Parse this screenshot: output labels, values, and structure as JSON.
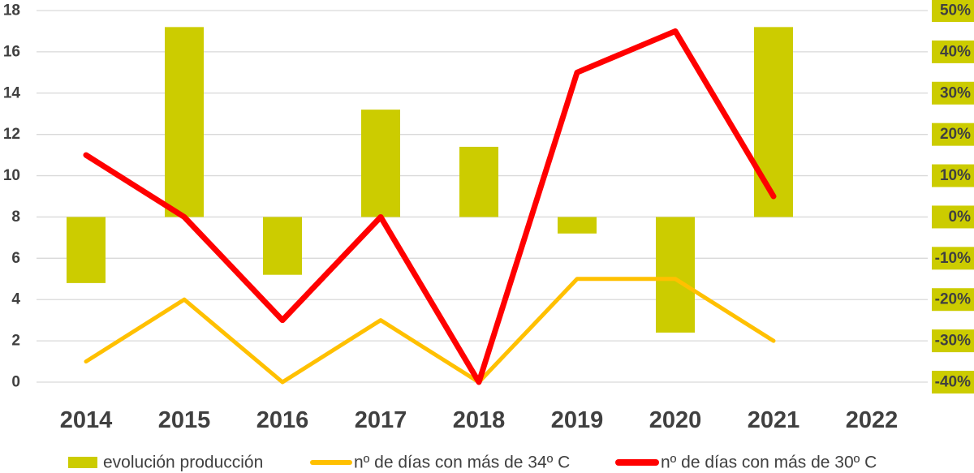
{
  "chart_data": {
    "type": "bar",
    "categories": [
      "2014",
      "2015",
      "2016",
      "2017",
      "2018",
      "2019",
      "2020",
      "2021",
      "2022"
    ],
    "y_left": {
      "ylim": [
        0,
        18
      ],
      "ticks": [
        "0",
        "2",
        "4",
        "6",
        "8",
        "10",
        "12",
        "14",
        "16",
        "18"
      ]
    },
    "y_right": {
      "ylim": [
        -0.4,
        0.5
      ],
      "ticks": [
        "-40%",
        "-30%",
        "-20%",
        "-10%",
        "0%",
        "10%",
        "20%",
        "30%",
        "40%",
        "50%"
      ],
      "tick_background": "#cccc00"
    },
    "series": [
      {
        "name": "evolución producción",
        "kind": "bar",
        "axis": "right",
        "color": "#cccc00",
        "values": [
          -0.16,
          0.46,
          -0.14,
          0.26,
          0.17,
          -0.04,
          -0.28,
          0.46,
          null
        ]
      },
      {
        "name": "nº de días con más de 34º C",
        "kind": "line",
        "axis": "left",
        "color": "#ffc000",
        "values": [
          1,
          4,
          0,
          3,
          0,
          5,
          5,
          2,
          null
        ]
      },
      {
        "name": "nº de días con más de 30º C",
        "kind": "line",
        "axis": "left",
        "color": "#ff0000",
        "values": [
          11,
          8,
          3,
          8,
          0,
          15,
          17,
          9,
          null
        ]
      }
    ],
    "grid": true,
    "legend_position": "bottom"
  }
}
